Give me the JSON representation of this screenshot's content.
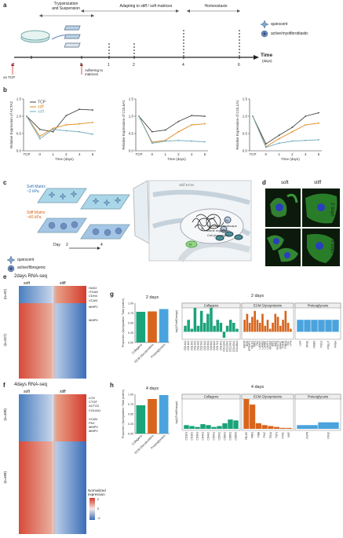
{
  "panels": {
    "a": "a",
    "b": "b",
    "c": "c",
    "d": "d",
    "e": "e",
    "f": "f",
    "g": "g",
    "h": "h"
  },
  "timeline": {
    "phase1": "Trypsinization\nand Suspension",
    "phase2": "Adapting to stiff / soft matrices",
    "phase3": "Homeostasis",
    "axis_label": "Time",
    "axis_unit": "(days)",
    "ticks": [
      "-2",
      "0",
      "1",
      "2",
      "4",
      "6"
    ],
    "on_tcp": "on TCP",
    "adhering": "Adhering to\nmatrices",
    "legend_quiescent": "quiescent",
    "legend_active": "active/myofibroblastic"
  },
  "chart_data": [
    {
      "type": "line",
      "panel": "b1",
      "ylabel": "Relative Expression of ACTA2",
      "xlabel": "Time (days)",
      "x": [
        "TCP",
        "0",
        "1",
        "2",
        "4",
        "6"
      ],
      "ylim": [
        0,
        1.5
      ],
      "yticks": [
        "0.0",
        "0.5",
        "1.0",
        "1.5"
      ],
      "series": [
        {
          "name": "TCP",
          "color": "#444444",
          "values": [
            1.0,
            0.62,
            0.55,
            1.02,
            1.2,
            1.18
          ]
        },
        {
          "name": "stiff",
          "color": "#e08a1e",
          "values": [
            1.0,
            0.42,
            0.65,
            0.75,
            0.78,
            0.82
          ]
        },
        {
          "name": "soft",
          "color": "#6aa8bd",
          "values": [
            1.0,
            0.35,
            0.62,
            0.58,
            0.55,
            0.48
          ]
        }
      ]
    },
    {
      "type": "line",
      "panel": "b2",
      "ylabel": "Relative Expression of COL6A1",
      "xlabel": "Time (days)",
      "x": [
        "TCP",
        "0",
        "1",
        "2",
        "4",
        "6"
      ],
      "ylim": [
        0,
        1.5
      ],
      "yticks": [
        "0.0",
        "0.5",
        "1.0",
        "1.5"
      ],
      "series": [
        {
          "name": "TCP",
          "color": "#444444",
          "values": [
            1.0,
            0.55,
            0.6,
            0.85,
            1.02,
            1.0
          ]
        },
        {
          "name": "stiff",
          "color": "#e08a1e",
          "values": [
            1.0,
            0.25,
            0.3,
            0.55,
            0.75,
            0.78
          ]
        },
        {
          "name": "soft",
          "color": "#6aa8bd",
          "values": [
            1.0,
            0.22,
            0.28,
            0.3,
            0.28,
            0.26
          ]
        }
      ]
    },
    {
      "type": "line",
      "panel": "b3",
      "ylabel": "Relative Expression of COL1A1",
      "xlabel": "Time (days)",
      "x": [
        "TCP",
        "0",
        "1",
        "2",
        "4",
        "6"
      ],
      "ylim": [
        0,
        1.5
      ],
      "yticks": [
        "0.0",
        "0.5",
        "1.0",
        "1.5"
      ],
      "series": [
        {
          "name": "TCP",
          "color": "#444444",
          "values": [
            1.0,
            0.2,
            0.45,
            0.68,
            1.0,
            1.1
          ]
        },
        {
          "name": "stiff",
          "color": "#e08a1e",
          "values": [
            1.0,
            0.12,
            0.35,
            0.55,
            0.75,
            0.8
          ]
        },
        {
          "name": "soft",
          "color": "#6aa8bd",
          "values": [
            1.0,
            0.1,
            0.22,
            0.28,
            0.3,
            0.32
          ]
        }
      ]
    },
    {
      "type": "bar",
      "panel": "g1",
      "title": "2 days",
      "ylabel": "Proportion\n(Upregulated / Total protein)",
      "categories": [
        "Collagens",
        "ECM Glycoproteins",
        "Proteoglycans"
      ],
      "colors": [
        "#1aa37a",
        "#d8651c",
        "#4aa3dc"
      ],
      "values": [
        0.78,
        0.79,
        0.85
      ],
      "ylim": [
        0,
        1.0
      ],
      "yticks": [
        "0.00",
        "0.25",
        "0.50",
        "0.75",
        "1.00"
      ]
    },
    {
      "type": "bar",
      "panel": "h1",
      "title": "4 days",
      "ylabel": "Proportion\n(Upregulated / Total protein)",
      "categories": [
        "Collagens",
        "ECM Glycoproteins",
        "Proteoglycans"
      ],
      "colors": [
        "#1aa37a",
        "#d8651c",
        "#4aa3dc"
      ],
      "values": [
        0.72,
        0.88,
        0.98
      ],
      "ylim": [
        0,
        1.0
      ],
      "yticks": [
        "0.00",
        "0.25",
        "0.50",
        "0.75",
        "1.00"
      ]
    }
  ],
  "panel_c": {
    "soft_matrix": "Soft Matrix\n~2 kPa",
    "stiff_matrix": "Stiff Matrix\n~40 kPa",
    "day_label": "Day",
    "day_start": "2",
    "day_end": "4",
    "stiff_ecm": "Stiff ECM",
    "chromatin": "Chromatin landscape",
    "gene_reg": "Gene regulation",
    "phenotype": "Cell phenotype",
    "qmark": "?",
    "ac": "Ac",
    "me": "Me",
    "tf": "TF",
    "legend_quiescent": "quiescent",
    "legend_active": "active/fibrogenic"
  },
  "panel_d": {
    "soft": "soft",
    "stiff": "stiff",
    "row1": "2 days",
    "row2": "4 days"
  },
  "panel_e": {
    "title": "2days RNA-seq",
    "soft": "soft",
    "stiff": "stiff",
    "n_top": "(n=92)",
    "n_bottom": "(n=327)",
    "genes": [
      "HAS2",
      "ITGA6",
      "CDH4",
      "VCAN",
      "MMP2",
      "MMP9"
    ]
  },
  "panel_f": {
    "title": "4days RNA-seq",
    "soft": "soft",
    "stiff": "stiff",
    "n_top": "(n=408)",
    "n_bottom": "(n=488)",
    "genes": [
      "LOX",
      "CTGF",
      "ACTG2",
      "COL6A1",
      "VCAN",
      "FN1",
      "MMP9",
      "MMP2"
    ],
    "legend_title": "Normalized\nexpression",
    "legend_ticks": [
      "2",
      "0",
      "-2"
    ]
  },
  "panel_g": {
    "title": "2 days",
    "ylabel": "log2(FoldChange)",
    "groups": [
      {
        "name": "Collagens",
        "color": "#1aa37a",
        "labels": [
          "COL1A1",
          "COL1A2",
          "COL3A1",
          "COL4A1",
          "COL4A2",
          "COL5A1",
          "COL5A2",
          "COL6A1",
          "COL6A2",
          "COL6A3",
          "COL7A1",
          "COL8A1",
          "COL11A1",
          "COL12A1",
          "COL14A1",
          "COL15A1",
          "COL18A1"
        ],
        "values": [
          0.1,
          0.2,
          0.05,
          0.4,
          0.1,
          0.35,
          0.15,
          0.3,
          0.4,
          0.1,
          0.2,
          0.15,
          -0.1,
          0.1,
          0.2,
          0.15,
          0.05
        ]
      },
      {
        "name": "ECM Glycoproteins",
        "color": "#d8651c",
        "labels": [
          "AGRN",
          "BGN",
          "EFEMP1",
          "FBLN1",
          "FBN1",
          "FN1",
          "LAMA4",
          "LAMB1",
          "LAMB2",
          "LAMC1",
          "MFGE8",
          "NID1",
          "NID2",
          "POSTN",
          "SPARC",
          "TGFBI",
          "THBS1",
          "TNC",
          "VTN"
        ],
        "values": [
          0.2,
          0.3,
          0.15,
          0.25,
          0.35,
          0.2,
          0.15,
          0.3,
          0.1,
          0.2,
          0.05,
          0.15,
          0.3,
          0.25,
          0.1,
          0.2,
          0.35,
          0.15,
          0.05
        ]
      },
      {
        "name": "Proteoglycans",
        "color": "#4aa3dc",
        "labels": [
          "LUM",
          "MIME",
          "PGBM",
          "PGS1",
          "PRELP",
          "PRG4"
        ],
        "values": [
          0.2,
          0.2,
          0.2,
          0.2,
          0.2,
          0.2
        ]
      }
    ]
  },
  "panel_h": {
    "title": "4 days",
    "ylabel": "log2(FoldChange)",
    "groups": [
      {
        "name": "Collagens",
        "color": "#1aa37a",
        "labels": [
          "CO1A1",
          "CO1A2",
          "CO3A1",
          "CO4A1",
          "CO4A2",
          "CO5A1",
          "CO5A2",
          "CO6A1",
          "CO6A2",
          "CO6A3"
        ],
        "values": [
          0.2,
          0.15,
          0.1,
          0.25,
          0.2,
          0.1,
          0.15,
          0.3,
          0.5,
          0.45
        ]
      },
      {
        "name": "ECM Glycoproteins",
        "color": "#d8651c",
        "labels": [
          "FBLN5",
          "FBN1",
          "FIBB",
          "FINC",
          "TENA",
          "TSP1",
          "VTNC",
          "VWF"
        ],
        "values": [
          1.6,
          1.3,
          0.3,
          0.2,
          0.15,
          0.1,
          0.05,
          0.05
        ]
      },
      {
        "name": "Proteoglycans",
        "color": "#4aa3dc",
        "labels": [
          "ASPN",
          "PGS2"
        ],
        "values": [
          0.2,
          0.35
        ]
      }
    ]
  }
}
